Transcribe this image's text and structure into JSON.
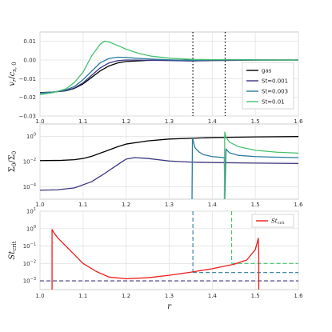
{
  "chart_data": [
    {
      "type": "line",
      "xlabel": "",
      "ylabel": "v_r / c_s,0",
      "ylabel_parts": {
        "v": "v",
        "r": "r",
        "c": "c",
        "sub": "s, 0"
      },
      "xlim": [
        1.0,
        1.6
      ],
      "ylim": [
        -0.03,
        0.015
      ],
      "yticks": [
        -0.03,
        -0.02,
        -0.01,
        0.0,
        0.01
      ],
      "ytick_labels": [
        "−0.03",
        "−0.02",
        "−0.01",
        "0.00",
        "0.01"
      ],
      "xticks": [
        1.0,
        1.1,
        1.2,
        1.3,
        1.4,
        1.5,
        1.6
      ],
      "grid": true,
      "legend_position": "lower-right",
      "vlines": [
        1.355,
        1.43
      ],
      "series": [
        {
          "name": "gas",
          "color": "#000000",
          "x": [
            1.0,
            1.03,
            1.06,
            1.08,
            1.1,
            1.12,
            1.14,
            1.16,
            1.18,
            1.2,
            1.25,
            1.3,
            1.4,
            1.5,
            1.6
          ],
          "y": [
            -0.0175,
            -0.0172,
            -0.0165,
            -0.0152,
            -0.0128,
            -0.0093,
            -0.0058,
            -0.0032,
            -0.0016,
            -0.0008,
            -0.0002,
            -0.0001,
            0.0,
            0.0,
            0.0
          ]
        },
        {
          "name": "St=0.001",
          "color": "#3b3680",
          "x": [
            1.0,
            1.03,
            1.06,
            1.08,
            1.1,
            1.12,
            1.14,
            1.16,
            1.18,
            1.2,
            1.25,
            1.3,
            1.355,
            1.4,
            1.5,
            1.6
          ],
          "y": [
            -0.0176,
            -0.0172,
            -0.0164,
            -0.015,
            -0.0122,
            -0.0082,
            -0.0042,
            -0.0016,
            -0.0004,
            0.0,
            -0.0001,
            -0.0003,
            -0.0005,
            -0.0003,
            -0.0001,
            0.0
          ]
        },
        {
          "name": "St=0.003",
          "color": "#2a7b9b",
          "x": [
            1.0,
            1.03,
            1.06,
            1.08,
            1.1,
            1.12,
            1.14,
            1.16,
            1.18,
            1.2,
            1.22,
            1.25,
            1.3,
            1.355,
            1.43,
            1.5,
            1.6
          ],
          "y": [
            -0.0178,
            -0.0172,
            -0.016,
            -0.0142,
            -0.0105,
            -0.006,
            -0.0015,
            0.0008,
            0.0015,
            0.0014,
            0.001,
            0.0006,
            0.0001,
            -0.0002,
            0.0002,
            0.0001,
            0.0
          ]
        },
        {
          "name": "St=0.01",
          "color": "#47c16e",
          "x": [
            1.0,
            1.03,
            1.06,
            1.08,
            1.1,
            1.12,
            1.14,
            1.15,
            1.16,
            1.18,
            1.2,
            1.23,
            1.26,
            1.3,
            1.355,
            1.43,
            1.5,
            1.6
          ],
          "y": [
            -0.0185,
            -0.0175,
            -0.0155,
            -0.012,
            -0.0065,
            0.0022,
            0.0085,
            0.0101,
            0.0097,
            0.0078,
            0.0058,
            0.0035,
            0.002,
            0.001,
            0.0003,
            0.0001,
            0.0,
            0.0
          ]
        }
      ]
    },
    {
      "type": "line",
      "xlabel": "",
      "ylabel": "Σ / Σ_0",
      "ylabel_parts": {
        "sym": "Σ",
        "sub": "0"
      },
      "xlim": [
        1.0,
        1.6
      ],
      "ylim_log10": [
        -5,
        1
      ],
      "yscale": "log",
      "yticks_log10": [
        -4,
        -2,
        0
      ],
      "xticks": [
        1.0,
        1.1,
        1.2,
        1.3,
        1.4,
        1.5,
        1.6
      ],
      "grid": true,
      "series": [
        {
          "name": "gas",
          "color": "#000000",
          "x": [
            1.0,
            1.05,
            1.08,
            1.1,
            1.12,
            1.15,
            1.18,
            1.2,
            1.25,
            1.3,
            1.4,
            1.5,
            1.6
          ],
          "y_log10": [
            -1.92,
            -1.9,
            -1.85,
            -1.75,
            -1.58,
            -1.2,
            -0.82,
            -0.6,
            -0.35,
            -0.2,
            -0.08,
            -0.03,
            0.0
          ]
        },
        {
          "name": "St=0.001",
          "color": "#3b3680",
          "x": [
            1.0,
            1.04,
            1.08,
            1.12,
            1.15,
            1.18,
            1.2,
            1.22,
            1.25,
            1.3,
            1.355,
            1.4,
            1.5,
            1.6
          ],
          "y_log10": [
            -4.28,
            -4.25,
            -4.1,
            -3.6,
            -2.95,
            -2.25,
            -1.8,
            -1.68,
            -1.75,
            -1.95,
            -2.05,
            -2.08,
            -2.12,
            -2.15
          ]
        },
        {
          "name": "St=0.003",
          "color": "#2a7b9b",
          "x": [
            1.353,
            1.354,
            1.356,
            1.36,
            1.37,
            1.38,
            1.4,
            1.428,
            1.429,
            1.432,
            1.44,
            1.46,
            1.5,
            1.55,
            1.6
          ],
          "y_log10": [
            -5.0,
            -0.1,
            -0.4,
            -0.9,
            -1.25,
            -1.45,
            -1.6,
            -1.68,
            -5.0,
            -1.0,
            -1.3,
            -1.5,
            -1.6,
            -1.65,
            -1.68
          ]
        },
        {
          "name": "St=0.01",
          "color": "#47c16e",
          "x": [
            1.428,
            1.429,
            1.432,
            1.44,
            1.46,
            1.5,
            1.55,
            1.6
          ],
          "y_log10": [
            -5.0,
            0.35,
            -0.05,
            -0.45,
            -0.8,
            -1.1,
            -1.25,
            -1.32
          ]
        }
      ]
    },
    {
      "type": "line",
      "xlabel": "r",
      "ylabel": "St_crit",
      "ylabel_parts": {
        "sym": "St",
        "sub": "crit"
      },
      "xlim": [
        1.0,
        1.6
      ],
      "ylim_log10": [
        -3.5,
        1
      ],
      "yscale": "log",
      "yticks_log10": [
        -3,
        -2,
        -1,
        0,
        1
      ],
      "xticks": [
        1.0,
        1.1,
        1.2,
        1.3,
        1.4,
        1.5,
        1.6
      ],
      "xtick_labels": [
        "1.0",
        "1.1",
        "1.2",
        "1.3",
        "1.4",
        "1.5",
        "1.6"
      ],
      "grid": true,
      "legend_position": "top-right",
      "series": [
        {
          "name": "St_crit",
          "legend_parts": {
            "sym": "St",
            "sub": "crit"
          },
          "color": "#ee1c1c",
          "x": [
            1.028,
            1.028,
            1.03,
            1.04,
            1.06,
            1.08,
            1.1,
            1.13,
            1.16,
            1.2,
            1.25,
            1.3,
            1.35,
            1.4,
            1.45,
            1.48,
            1.5,
            1.507,
            1.508,
            1.508
          ],
          "y_log10": [
            -3.5,
            -0.05,
            -0.15,
            -0.5,
            -1.0,
            -1.5,
            -2.0,
            -2.45,
            -2.78,
            -2.88,
            -2.82,
            -2.68,
            -2.5,
            -2.3,
            -2.05,
            -1.8,
            -1.2,
            -0.55,
            -1.5,
            -3.5
          ]
        }
      ],
      "reference_lines": [
        {
          "label": "St=0.001",
          "color": "#3b3680",
          "y_log10": -3.0,
          "x_start": 1.0,
          "drop_x": null
        },
        {
          "label": "St=0.003",
          "color": "#2a7b9b",
          "y_log10": -2.52,
          "x_start": 1.355,
          "drop_x": 1.355
        },
        {
          "label": "St=0.01",
          "color": "#47c16e",
          "y_log10": -2.0,
          "x_start": 1.445,
          "drop_x": 1.445
        }
      ]
    }
  ]
}
